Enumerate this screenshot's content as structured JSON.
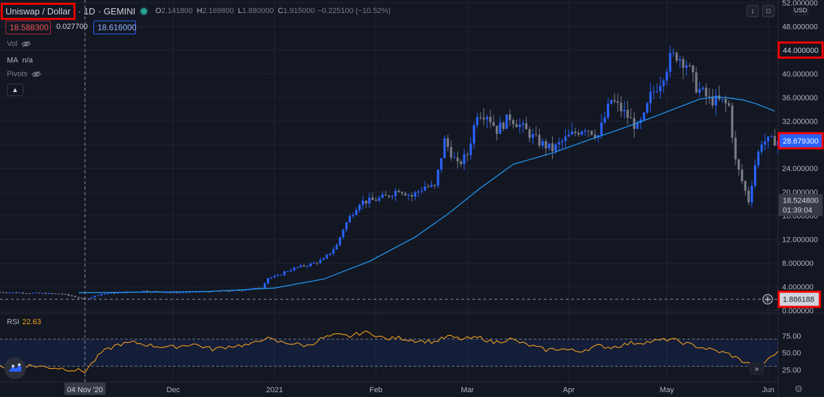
{
  "header": {
    "symbol": "Uniswap / Dollar",
    "separator": "·",
    "interval": "1D",
    "exchange": "GEMINI",
    "ohlc": [
      {
        "key": "O",
        "value": "2.141800"
      },
      {
        "key": "H",
        "value": "2.169800"
      },
      {
        "key": "L",
        "value": "1.880000"
      },
      {
        "key": "C",
        "value": "1.915000"
      }
    ],
    "change": "−0.225100 (−10.52%)",
    "status_color": "#26a69a"
  },
  "trade": {
    "sell_price": "18.588300",
    "spread": "0.027700",
    "buy_price": "18.616000"
  },
  "legend": {
    "vol_label": "Vol",
    "ma_label": "MA",
    "ma_value": "n/a",
    "pivots_label": "Pivots"
  },
  "toolbar": {
    "currency": "USD"
  },
  "price_axis": {
    "ticks": [
      {
        "v": 0,
        "label": "0.000000"
      },
      {
        "v": 4,
        "label": "4.000000"
      },
      {
        "v": 8,
        "label": "8.000000"
      },
      {
        "v": 12,
        "label": "12.000000"
      },
      {
        "v": 16,
        "label": "16.000000"
      },
      {
        "v": 20,
        "label": "20.000000"
      },
      {
        "v": 24,
        "label": "24.000000"
      },
      {
        "v": 28,
        "label": "28.000000"
      },
      {
        "v": 32,
        "label": "32.000000"
      },
      {
        "v": 36,
        "label": "36.000000"
      },
      {
        "v": 40,
        "label": "40.000000"
      },
      {
        "v": 44,
        "label": "44.000000"
      },
      {
        "v": 48,
        "label": "48.000000"
      },
      {
        "v": 52,
        "label": "52.000000"
      }
    ],
    "markers": [
      {
        "v": 44.0,
        "label": "44.000000",
        "style": "highlight"
      },
      {
        "v": 28.6793,
        "label": "28.679300",
        "style": "current"
      },
      {
        "v": 18.5248,
        "label": "18.524800",
        "sublabel": "01:39:04",
        "style": "ma"
      },
      {
        "v": 1.886188,
        "label": "1.886188",
        "style": "crosshair"
      }
    ]
  },
  "time_axis": {
    "labels": [
      {
        "d": 7,
        "label": "04 Nov '20",
        "style": "crosshair"
      },
      {
        "d": 34,
        "label": "Dec"
      },
      {
        "d": 65,
        "label": "2021"
      },
      {
        "d": 96,
        "label": "Feb"
      },
      {
        "d": 124,
        "label": "Mar"
      },
      {
        "d": 155,
        "label": "Apr"
      },
      {
        "d": 185,
        "label": "May"
      },
      {
        "d": 216,
        "label": "Jun"
      }
    ]
  },
  "rsi": {
    "label": "RSI",
    "value": "22.63",
    "ticks": [
      {
        "v": 25,
        "label": "25.00"
      },
      {
        "v": 50,
        "label": "50.00"
      },
      {
        "v": 75,
        "label": "75.00"
      }
    ],
    "upper": 70,
    "lower": 30,
    "line_color": "#f7a21b"
  },
  "colors": {
    "up": "#2962ff",
    "down": "#787b86",
    "ma": "#2196f3",
    "background": "#131722",
    "grid": "#1f2433",
    "highlight_border": "#ff0000"
  },
  "chart_data": {
    "type": "candlestick",
    "title": "Uniswap / Dollar · 1D · GEMINI",
    "ylabel": "USD",
    "ylim": [
      0,
      52
    ],
    "x_range_days": [
      -19,
      219
    ],
    "crosshair": {
      "day": 7,
      "price": 1.886188
    },
    "price_series_approx": [
      [
        -20,
        3.1
      ],
      [
        0,
        2.8
      ],
      [
        7,
        1.9
      ],
      [
        12,
        2.8
      ],
      [
        18,
        3.0
      ],
      [
        25,
        3.3
      ],
      [
        34,
        3.0
      ],
      [
        45,
        3.2
      ],
      [
        55,
        3.4
      ],
      [
        61,
        3.9
      ],
      [
        63,
        5.5
      ],
      [
        66,
        5.8
      ],
      [
        68,
        6.5
      ],
      [
        72,
        7.3
      ],
      [
        76,
        7.8
      ],
      [
        80,
        8.6
      ],
      [
        84,
        11.0
      ],
      [
        86,
        13.8
      ],
      [
        88,
        15.8
      ],
      [
        91,
        18.3
      ],
      [
        95,
        18.6
      ],
      [
        99,
        19.2
      ],
      [
        103,
        20.5
      ],
      [
        107,
        19.3
      ],
      [
        111,
        21.0
      ],
      [
        114,
        20.8
      ],
      [
        117,
        28.7
      ],
      [
        121,
        24.5
      ],
      [
        124,
        26.4
      ],
      [
        127,
        33.5
      ],
      [
        130,
        33.2
      ],
      [
        133,
        30.5
      ],
      [
        137,
        32.7
      ],
      [
        141,
        30.8
      ],
      [
        146,
        28.4
      ],
      [
        150,
        27.2
      ],
      [
        155,
        29.4
      ],
      [
        160,
        31.0
      ],
      [
        164,
        29.6
      ],
      [
        168,
        35.6
      ],
      [
        172,
        33.4
      ],
      [
        176,
        30.8
      ],
      [
        178,
        32.6
      ],
      [
        180,
        36.2
      ],
      [
        183,
        38.8
      ],
      [
        186,
        42.5
      ],
      [
        188,
        43.2
      ],
      [
        191,
        41.8
      ],
      [
        194,
        37.8
      ],
      [
        198,
        35.6
      ],
      [
        202,
        35.2
      ],
      [
        204,
        34.5
      ],
      [
        206,
        25.2
      ],
      [
        210,
        18.5
      ],
      [
        212,
        24.7
      ],
      [
        214,
        28.6
      ],
      [
        218,
        28.68
      ]
    ],
    "ma_series": [
      [
        5,
        3.0
      ],
      [
        25,
        3.1
      ],
      [
        45,
        3.2
      ],
      [
        65,
        3.8
      ],
      [
        80,
        5.3
      ],
      [
        94,
        8.3
      ],
      [
        108,
        12.4
      ],
      [
        118,
        16.3
      ],
      [
        128,
        20.7
      ],
      [
        138,
        24.7
      ],
      [
        150,
        26.6
      ],
      [
        160,
        28.6
      ],
      [
        170,
        30.5
      ],
      [
        180,
        32.5
      ],
      [
        195,
        35.7
      ],
      [
        200,
        36.1
      ],
      [
        204,
        35.9
      ],
      [
        208,
        35.6
      ],
      [
        212,
        35.0
      ],
      [
        218,
        33.7
      ]
    ],
    "rsi_series_approx": [
      [
        -19,
        30
      ],
      [
        -10,
        31
      ],
      [
        0,
        27
      ],
      [
        7,
        22.6
      ],
      [
        12,
        50
      ],
      [
        17,
        62
      ],
      [
        22,
        65
      ],
      [
        28,
        60
      ],
      [
        34,
        58
      ],
      [
        40,
        63
      ],
      [
        46,
        55
      ],
      [
        52,
        60
      ],
      [
        58,
        62
      ],
      [
        62,
        72
      ],
      [
        66,
        66
      ],
      [
        70,
        64
      ],
      [
        75,
        60
      ],
      [
        80,
        72
      ],
      [
        84,
        76
      ],
      [
        88,
        74
      ],
      [
        92,
        80
      ],
      [
        95,
        78
      ],
      [
        99,
        70
      ],
      [
        103,
        72
      ],
      [
        108,
        68
      ],
      [
        114,
        66
      ],
      [
        118,
        74
      ],
      [
        122,
        70
      ],
      [
        128,
        72
      ],
      [
        132,
        65
      ],
      [
        137,
        70
      ],
      [
        142,
        62
      ],
      [
        148,
        54
      ],
      [
        152,
        56
      ],
      [
        158,
        52
      ],
      [
        164,
        60
      ],
      [
        168,
        58
      ],
      [
        174,
        64
      ],
      [
        180,
        66
      ],
      [
        186,
        70
      ],
      [
        192,
        62
      ],
      [
        198,
        55
      ],
      [
        204,
        48
      ],
      [
        208,
        38
      ],
      [
        212,
        30
      ],
      [
        214,
        27
      ],
      [
        216,
        42
      ],
      [
        219,
        50
      ]
    ]
  }
}
